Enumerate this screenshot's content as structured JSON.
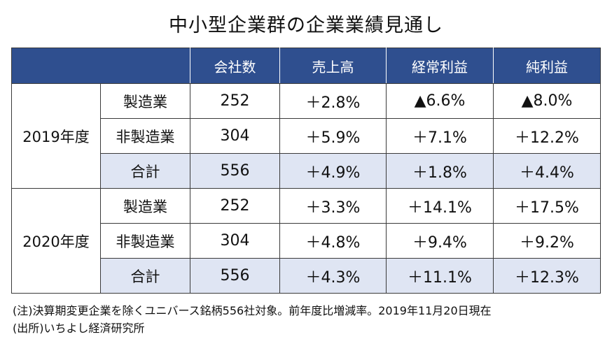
{
  "title": "中小型企業群の企業業績見通し",
  "table": {
    "headers": [
      "",
      "",
      "会社数",
      "売上高",
      "経常利益",
      "純利益"
    ],
    "groups": [
      {
        "year": "2019年度",
        "rows": [
          {
            "category": "製造業",
            "companies": "252",
            "sales": "＋2.8%",
            "ordinary": "▲6.6%",
            "net": "▲8.0%"
          },
          {
            "category": "非製造業",
            "companies": "304",
            "sales": "＋5.9%",
            "ordinary": "＋7.1%",
            "net": "＋12.2%"
          },
          {
            "category": "合計",
            "companies": "556",
            "sales": "＋4.9%",
            "ordinary": "＋1.8%",
            "net": "＋4.4%"
          }
        ]
      },
      {
        "year": "2020年度",
        "rows": [
          {
            "category": "製造業",
            "companies": "252",
            "sales": "＋3.3%",
            "ordinary": "＋14.1%",
            "net": "＋17.5%"
          },
          {
            "category": "非製造業",
            "companies": "304",
            "sales": "＋4.8%",
            "ordinary": "＋9.4%",
            "net": "＋9.2%"
          },
          {
            "category": "合計",
            "companies": "556",
            "sales": "＋4.3%",
            "ordinary": "＋11.1%",
            "net": "＋12.3%"
          }
        ]
      }
    ]
  },
  "notes": [
    "(注)決算期変更企業を除くユニバース銘柄556社対象。前年度比増減率。2019年11月20日現在",
    "(出所)いちよし経済研究所"
  ],
  "colors": {
    "header_bg": "#2f4f8f",
    "total_row_bg": "#dfe5f3"
  }
}
